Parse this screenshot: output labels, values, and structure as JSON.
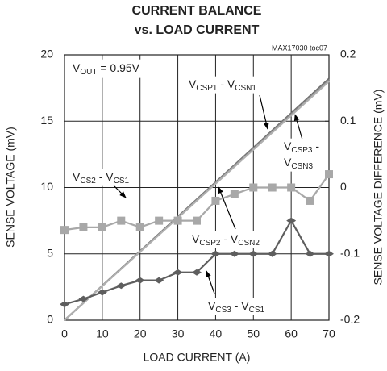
{
  "chart_data": {
    "type": "line",
    "title": "CURRENT BALANCE",
    "subtitle": "vs. LOAD CURRENT",
    "note": "MAX17030 toc07",
    "annotation": "VOUT = 0.95V",
    "xlabel": "LOAD CURRENT (A)",
    "ylabel": "SENSE VOLTAGE (mV)",
    "y2label": "SENSE VOLTAGE DIFFERENCE (mV)",
    "xlim": [
      0,
      70
    ],
    "xticks": [
      0,
      10,
      20,
      30,
      40,
      50,
      60,
      70
    ],
    "ylim": [
      0,
      20
    ],
    "yticks": [
      0,
      5,
      10,
      15,
      20
    ],
    "y2lim": [
      -0.2,
      0.2
    ],
    "y2ticks": [
      -0.2,
      -0.1,
      0,
      0.1,
      0.2
    ],
    "grid": true,
    "series": [
      {
        "name": "VCSP1 - VCSN1",
        "color": "#6e6e6e",
        "marker": "none",
        "x": [
          0,
          70
        ],
        "values": [
          0,
          18.2
        ]
      },
      {
        "name": "VCSP2 - VCSN2",
        "color": "#8a8a8a",
        "marker": "none",
        "x": [
          0,
          70
        ],
        "values": [
          0,
          18.1
        ]
      },
      {
        "name": "VCSP3 - VCSN3",
        "color": "#b0b0b0",
        "marker": "none",
        "x": [
          0,
          70
        ],
        "values": [
          0,
          18.0
        ]
      },
      {
        "name": "VCS2 - VCS1",
        "color": "#a8a8a8",
        "marker": "square",
        "axis": "y2",
        "x": [
          0,
          5,
          10,
          15,
          20,
          25,
          30,
          35,
          40,
          45,
          50,
          55,
          60,
          65,
          70
        ],
        "values": [
          -0.064,
          -0.06,
          -0.06,
          -0.05,
          -0.06,
          -0.05,
          -0.05,
          -0.05,
          -0.02,
          -0.01,
          0,
          0,
          0,
          -0.02,
          0.02
        ]
      },
      {
        "name": "VCS3 - VCS1",
        "color": "#5e5e5e",
        "marker": "diamond",
        "axis": "y2",
        "x": [
          0,
          5,
          10,
          15,
          20,
          25,
          30,
          35,
          40,
          45,
          50,
          55,
          60,
          65,
          70
        ],
        "values": [
          -0.176,
          -0.168,
          -0.158,
          -0.148,
          -0.14,
          -0.14,
          -0.128,
          -0.128,
          -0.1,
          -0.1,
          -0.1,
          -0.1,
          -0.05,
          -0.1,
          -0.1
        ]
      }
    ]
  }
}
